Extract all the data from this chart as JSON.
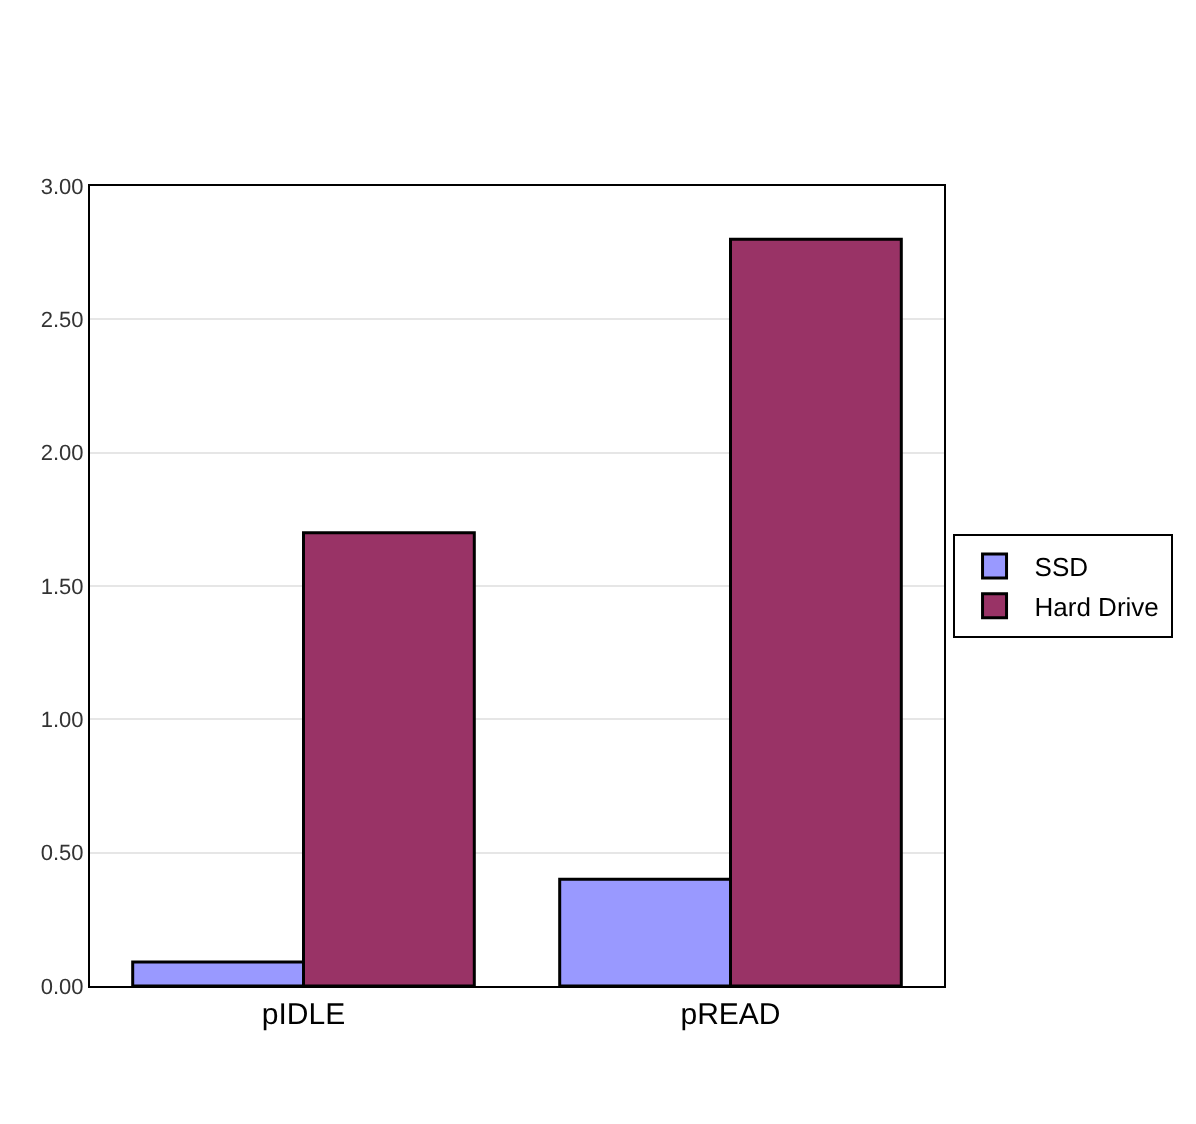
{
  "chart_data": {
    "type": "bar",
    "categories": [
      "pIDLE",
      "pREAD"
    ],
    "series": [
      {
        "name": "SSD",
        "color": "#9999ff",
        "values": [
          0.09,
          0.4
        ]
      },
      {
        "name": "Hard Drive",
        "color": "#993366",
        "values": [
          1.7,
          2.8
        ]
      }
    ],
    "ylim": [
      0,
      3
    ],
    "yticks": [
      {
        "value": 0,
        "label": "0.00"
      },
      {
        "value": 0.5,
        "label": "0.50"
      },
      {
        "value": 1,
        "label": "1.00"
      },
      {
        "value": 1.5,
        "label": "1.50"
      },
      {
        "value": 2,
        "label": "2.00"
      },
      {
        "value": 2.5,
        "label": "2.50"
      },
      {
        "value": 3,
        "label": "3.00"
      }
    ],
    "grid": "y",
    "legend": "right"
  }
}
